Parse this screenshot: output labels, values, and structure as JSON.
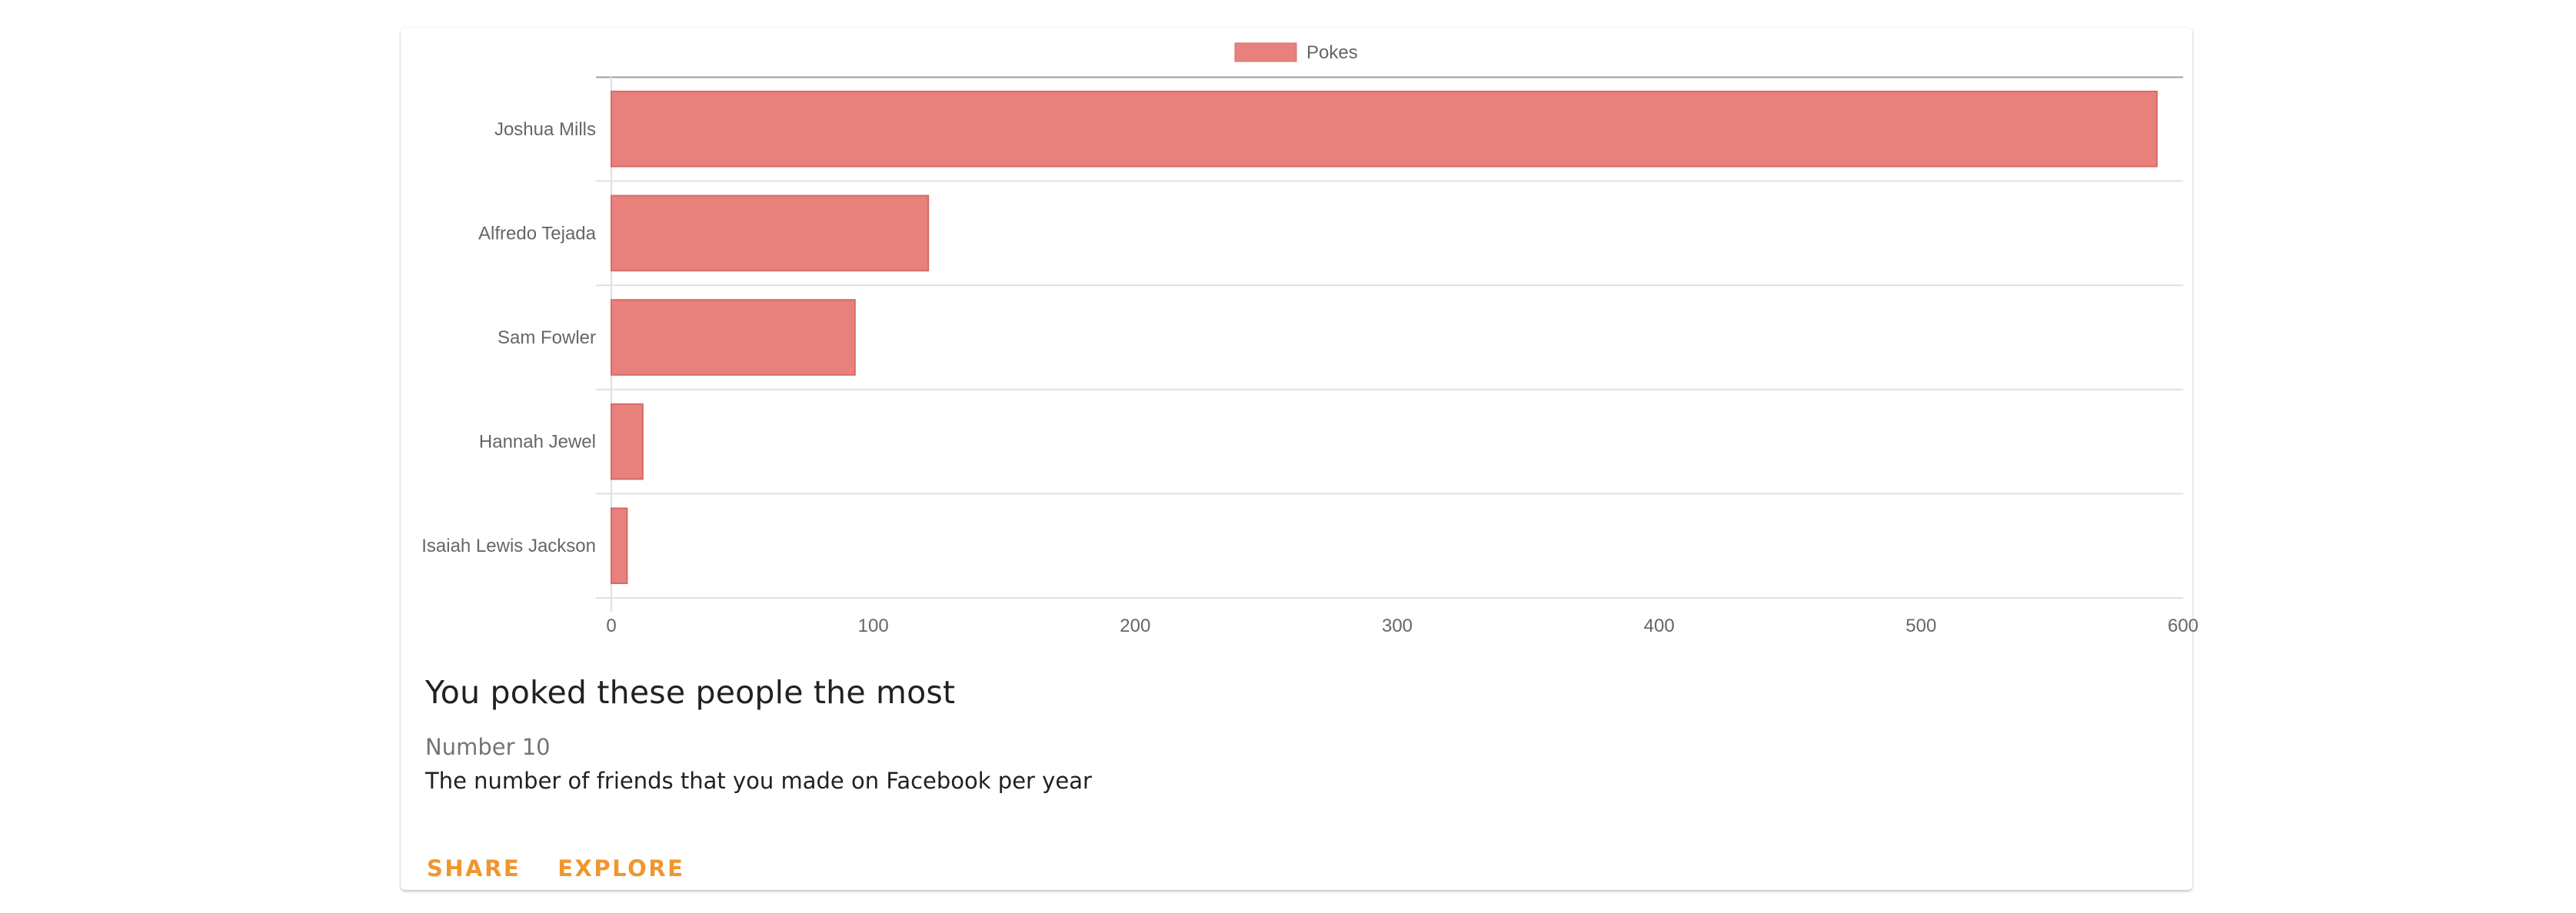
{
  "colors": {
    "bar_fill": "#e8807c",
    "bar_stroke": "#d96a66",
    "accent": "#f0962e",
    "grid": "#e0e0e0",
    "axis_text": "#666666"
  },
  "chart_data": {
    "type": "bar",
    "orientation": "horizontal",
    "categories": [
      "Joshua Mills",
      "Alfredo Tejada",
      "Sam Fowler",
      "Hannah Jewel",
      "Isaiah Lewis Jackson"
    ],
    "series": [
      {
        "name": "Pokes",
        "values": [
          590,
          121,
          93,
          12,
          6
        ]
      }
    ],
    "xticks": [
      0,
      100,
      200,
      300,
      400,
      500,
      600
    ],
    "xlim": [
      0,
      600
    ],
    "legend_position": "top-center",
    "grid": true
  },
  "card": {
    "title": "You poked these people the most",
    "subtitle": "Number 10",
    "text": "The number of friends that you made on Facebook per year"
  },
  "actions": {
    "share_label": "SHARE",
    "explore_label": "EXPLORE"
  }
}
